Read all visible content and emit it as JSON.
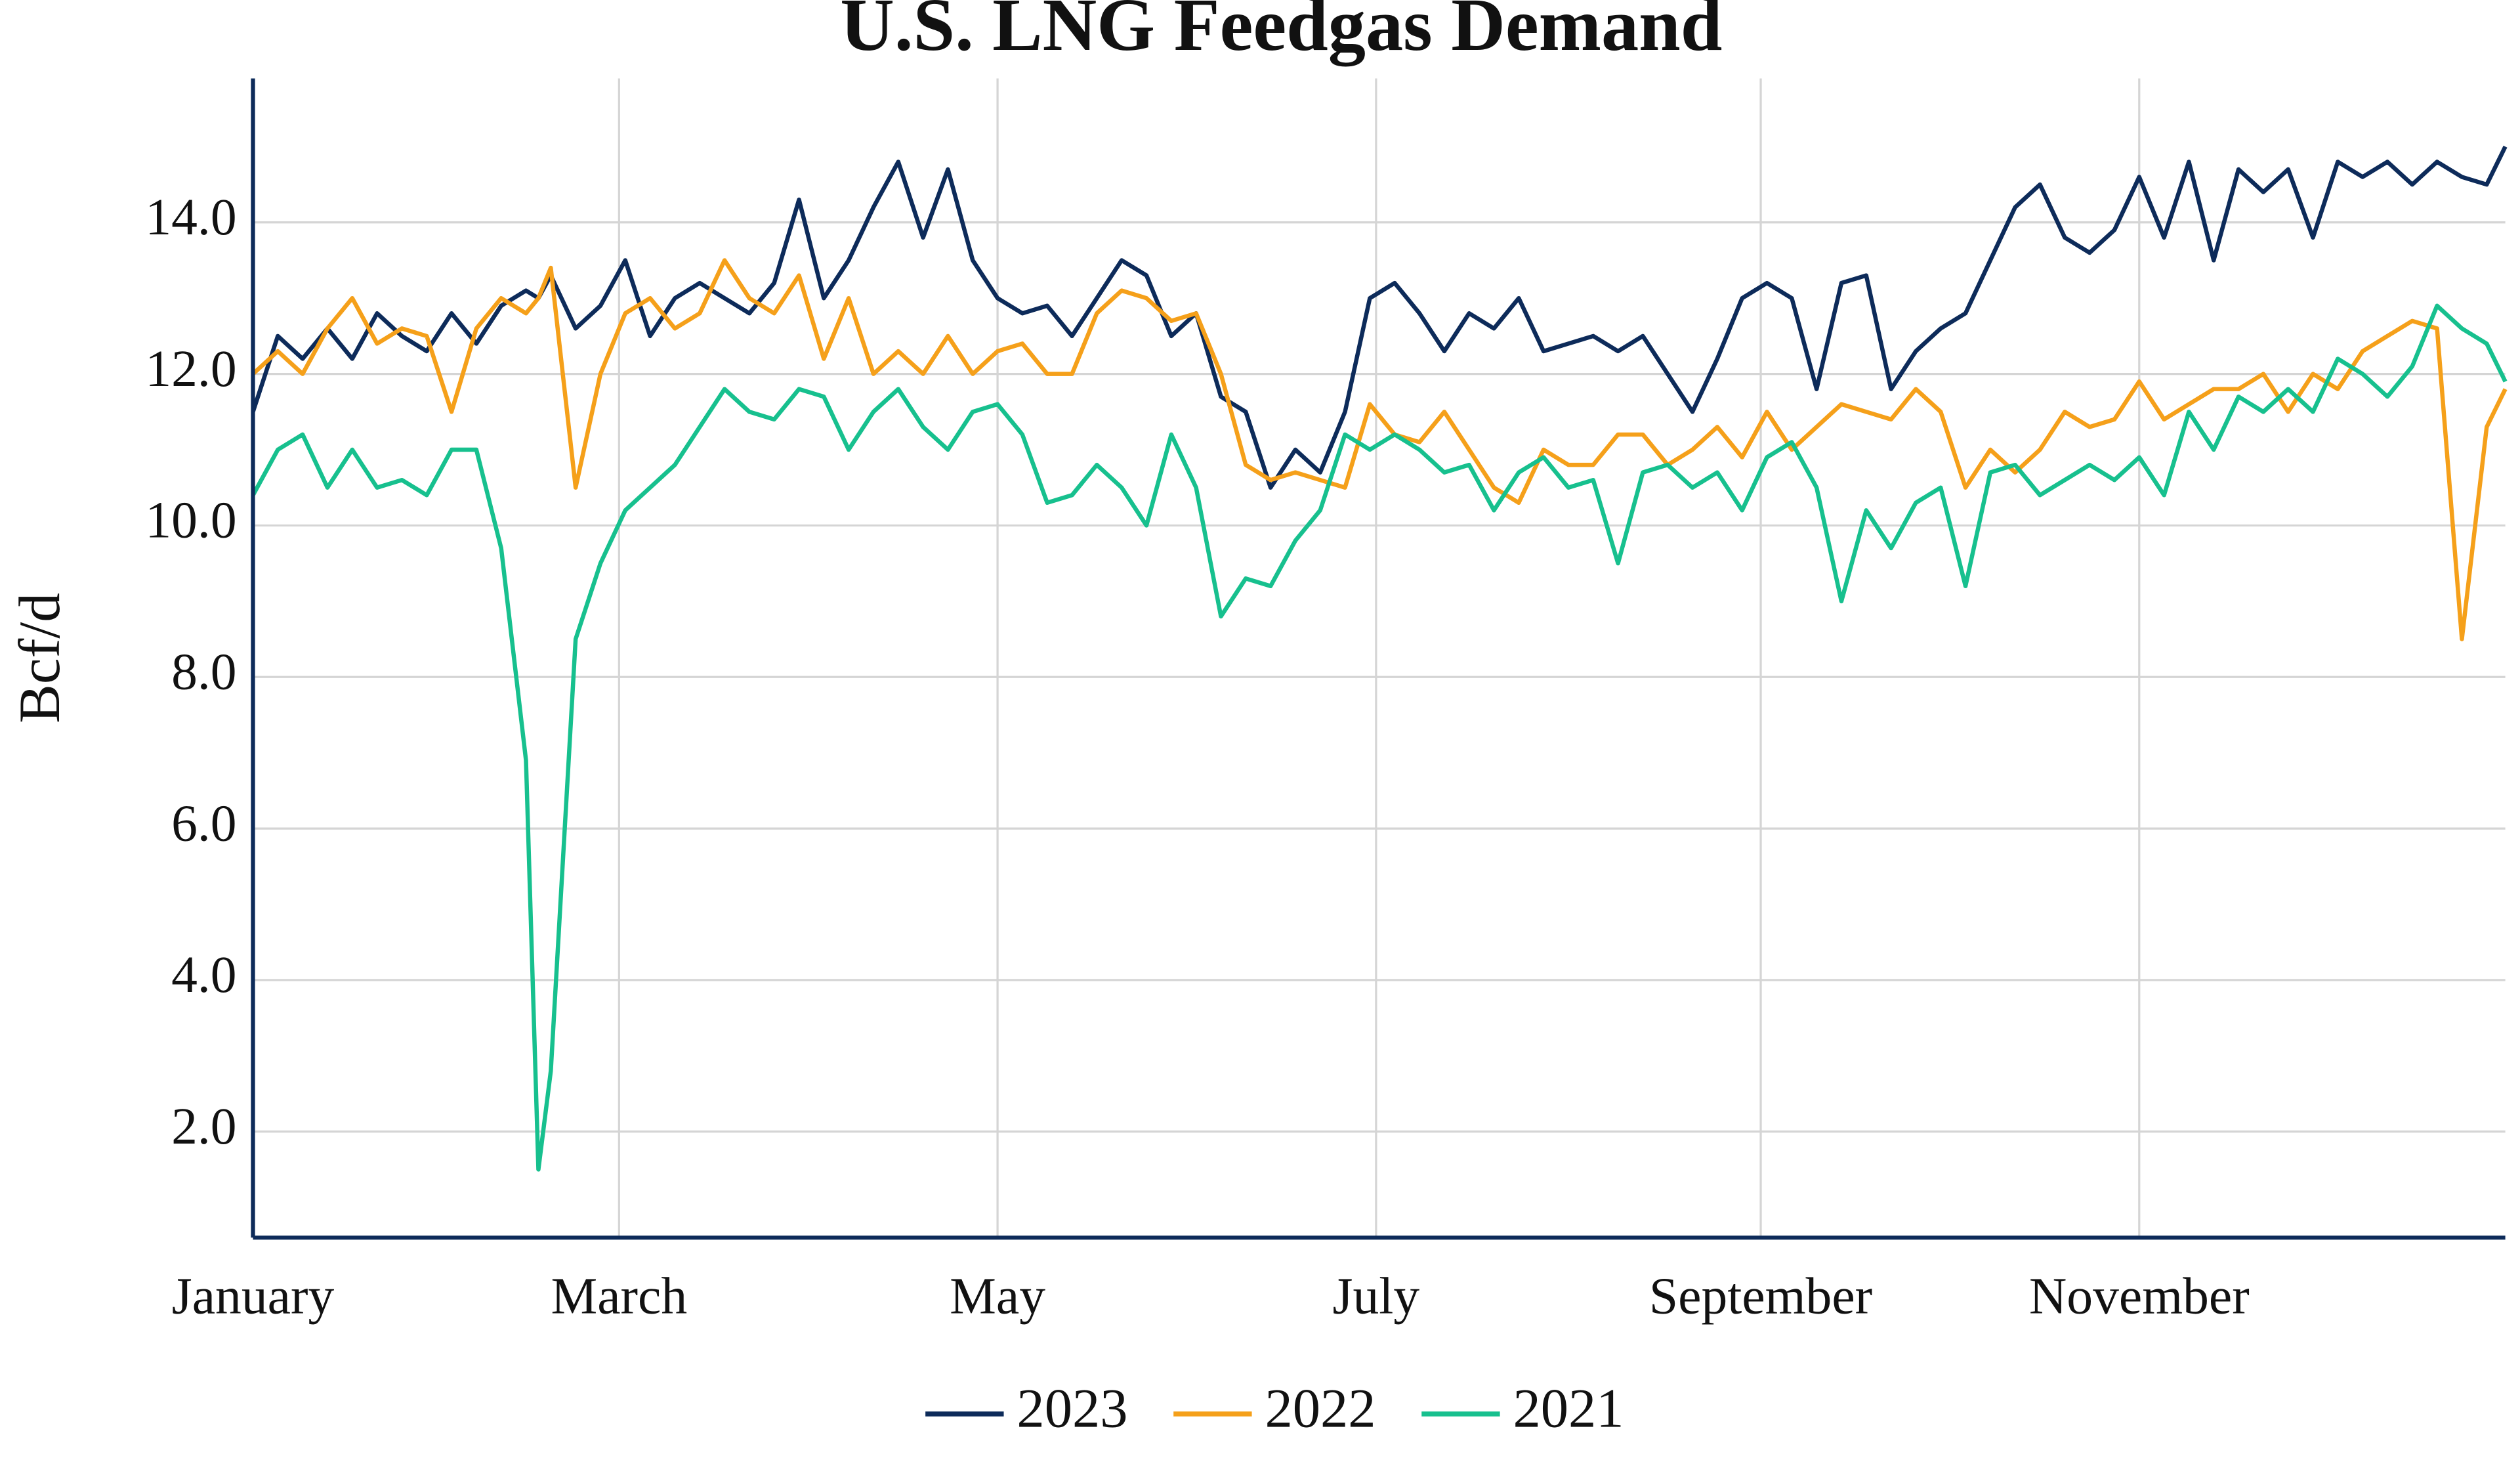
{
  "chart_data": {
    "type": "line",
    "title": "U.S. LNG Feedgas Demand",
    "y_label": "Bcf/d",
    "x": [
      1,
      5,
      9,
      13,
      17,
      21,
      25,
      29,
      33,
      37,
      41,
      45,
      47,
      49,
      53,
      57,
      61,
      65,
      69,
      73,
      77,
      81,
      85,
      89,
      93,
      97,
      101,
      105,
      109,
      113,
      117,
      121,
      125,
      129,
      133,
      137,
      141,
      145,
      149,
      153,
      157,
      161,
      165,
      169,
      173,
      177,
      181,
      185,
      189,
      193,
      197,
      201,
      205,
      209,
      213,
      217,
      221,
      225,
      229,
      233,
      237,
      241,
      245,
      249,
      253,
      257,
      261,
      265,
      269,
      273,
      277,
      281,
      285,
      289,
      293,
      297,
      301,
      305,
      309,
      313,
      317,
      321,
      325,
      329,
      333,
      337,
      341,
      345,
      349,
      353,
      357,
      361,
      364
    ],
    "xlim": [
      1,
      364
    ],
    "xticks": [
      {
        "value": 1,
        "label": "January"
      },
      {
        "value": 60,
        "label": "March"
      },
      {
        "value": 121,
        "label": "May"
      },
      {
        "value": 182,
        "label": "July"
      },
      {
        "value": 244,
        "label": "September"
      },
      {
        "value": 305,
        "label": "November"
      }
    ],
    "ylim": [
      0.6,
      15.9
    ],
    "yticks": [
      {
        "value": 2,
        "label": "2.0"
      },
      {
        "value": 4,
        "label": "4.0"
      },
      {
        "value": 6,
        "label": "6.0"
      },
      {
        "value": 8,
        "label": "8.0"
      },
      {
        "value": 10,
        "label": "10.0"
      },
      {
        "value": 12,
        "label": "12.0"
      },
      {
        "value": 14,
        "label": "14.0"
      }
    ],
    "grid": true,
    "legend": "bottom",
    "series": [
      {
        "name": "2023",
        "color": "#0d2b5a",
        "values": [
          11.5,
          12.5,
          12.2,
          12.6,
          12.2,
          12.8,
          12.5,
          12.3,
          12.8,
          12.4,
          12.9,
          13.1,
          13.0,
          13.3,
          12.6,
          12.9,
          13.5,
          12.5,
          13.0,
          13.2,
          13.0,
          12.8,
          13.2,
          14.3,
          13.0,
          13.5,
          14.2,
          14.8,
          13.8,
          14.7,
          13.5,
          13.0,
          12.8,
          12.9,
          12.5,
          13.0,
          13.5,
          13.3,
          12.5,
          12.8,
          11.7,
          11.5,
          10.5,
          11.0,
          10.7,
          11.5,
          13.0,
          13.2,
          12.8,
          12.3,
          12.8,
          12.6,
          13.0,
          12.3,
          12.4,
          12.5,
          12.3,
          12.5,
          12.0,
          11.5,
          12.2,
          13.0,
          13.2,
          13.0,
          11.8,
          13.2,
          13.3,
          11.8,
          12.3,
          12.6,
          12.8,
          13.5,
          14.2,
          14.5,
          13.8,
          13.6,
          13.9,
          14.6,
          13.8,
          14.8,
          13.5,
          14.7,
          14.4,
          14.7,
          13.8,
          14.8,
          14.6,
          14.8,
          14.5,
          14.8,
          14.6,
          14.5,
          15.0
        ]
      },
      {
        "name": "2022",
        "color": "#f5a01a",
        "values": [
          12.0,
          12.3,
          12.0,
          12.6,
          13.0,
          12.4,
          12.6,
          12.5,
          11.5,
          12.6,
          13.0,
          12.8,
          13.0,
          13.4,
          10.5,
          12.0,
          12.8,
          13.0,
          12.6,
          12.8,
          13.5,
          13.0,
          12.8,
          13.3,
          12.2,
          13.0,
          12.0,
          12.3,
          12.0,
          12.5,
          12.0,
          12.3,
          12.4,
          12.0,
          12.0,
          12.8,
          13.1,
          13.0,
          12.7,
          12.8,
          12.0,
          10.8,
          10.6,
          10.7,
          10.6,
          10.5,
          11.6,
          11.2,
          11.1,
          11.5,
          11.0,
          10.5,
          10.3,
          11.0,
          10.8,
          10.8,
          11.2,
          11.2,
          10.8,
          11.0,
          11.3,
          10.9,
          11.5,
          11.0,
          11.3,
          11.6,
          11.5,
          11.4,
          11.8,
          11.5,
          10.5,
          11.0,
          10.7,
          11.0,
          11.5,
          11.3,
          11.4,
          11.9,
          11.4,
          11.6,
          11.8,
          11.8,
          12.0,
          11.5,
          12.0,
          11.8,
          12.3,
          12.5,
          12.7,
          12.6,
          8.5,
          11.3,
          11.8
        ]
      },
      {
        "name": "2021",
        "color": "#17c08e",
        "values": [
          10.4,
          11.0,
          11.2,
          10.5,
          11.0,
          10.5,
          10.6,
          10.4,
          11.0,
          11.0,
          9.7,
          6.9,
          1.5,
          2.8,
          8.5,
          9.5,
          10.2,
          10.5,
          10.8,
          11.3,
          11.8,
          11.5,
          11.4,
          11.8,
          11.7,
          11.0,
          11.5,
          11.8,
          11.3,
          11.0,
          11.5,
          11.6,
          11.2,
          10.3,
          10.4,
          10.8,
          10.5,
          10.0,
          11.2,
          10.5,
          8.8,
          9.3,
          9.2,
          9.8,
          10.2,
          11.2,
          11.0,
          11.2,
          11.0,
          10.7,
          10.8,
          10.2,
          10.7,
          10.9,
          10.5,
          10.6,
          9.5,
          10.7,
          10.8,
          10.5,
          10.7,
          10.2,
          10.9,
          11.1,
          10.5,
          9.0,
          10.2,
          9.7,
          10.3,
          10.5,
          9.2,
          10.7,
          10.8,
          10.4,
          10.6,
          10.8,
          10.6,
          10.9,
          10.4,
          11.5,
          11.0,
          11.7,
          11.5,
          11.8,
          11.5,
          12.2,
          12.0,
          11.7,
          12.1,
          12.9,
          12.6,
          12.4,
          11.9
        ]
      }
    ]
  }
}
